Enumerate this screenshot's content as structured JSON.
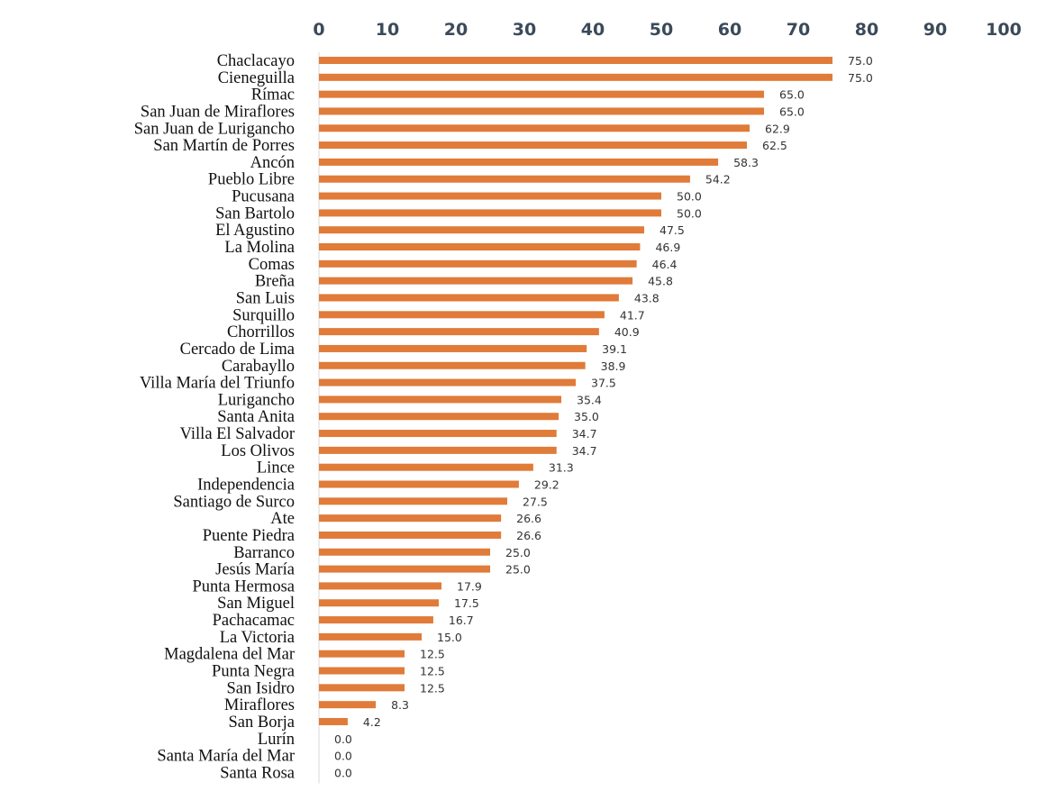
{
  "chart_data": {
    "type": "bar",
    "orientation": "horizontal",
    "title": "",
    "xlabel": "",
    "ylabel": "",
    "xlim": [
      0,
      100
    ],
    "ticks": [
      "0",
      "10",
      "20",
      "30",
      "40",
      "50",
      "60",
      "70",
      "80",
      "90",
      "100"
    ],
    "grid": false,
    "axis_position": "top",
    "bar_color": "#e07b39",
    "categories": [
      "Chaclacayo",
      "Cieneguilla",
      "Rímac",
      "San Juan de Miraflores",
      "San Juan de Lurigancho",
      "San Martín de Porres",
      "Ancón",
      "Pueblo Libre",
      "Pucusana",
      "San Bartolo",
      "El Agustino",
      "La Molina",
      "Comas",
      "Breña",
      "San Luis",
      "Surquillo",
      "Chorrillos",
      "Cercado de Lima",
      "Carabayllo",
      "Villa María del Triunfo",
      "Lurigancho",
      "Santa Anita",
      "Villa El Salvador",
      "Los Olivos",
      "Lince",
      "Independencia",
      "Santiago de Surco",
      "Ate",
      "Puente Piedra",
      "Barranco",
      "Jesús María",
      "Punta Hermosa",
      "San Miguel",
      "Pachacamac",
      "La Victoria",
      "Magdalena del Mar",
      "Punta Negra",
      "San Isidro",
      "Miraflores",
      "San Borja",
      "Lurín",
      "Santa María del Mar",
      "Santa Rosa"
    ],
    "values": [
      75.0,
      75.0,
      65.0,
      65.0,
      62.9,
      62.5,
      58.3,
      54.2,
      50.0,
      50.0,
      47.5,
      46.9,
      46.4,
      45.8,
      43.8,
      41.7,
      40.9,
      39.1,
      38.9,
      37.5,
      35.4,
      35.0,
      34.7,
      34.7,
      31.3,
      29.2,
      27.5,
      26.6,
      26.6,
      25.0,
      25.0,
      17.9,
      17.5,
      16.7,
      15.0,
      12.5,
      12.5,
      12.5,
      8.3,
      4.2,
      0.0,
      0.0,
      0.0
    ],
    "value_labels": [
      "75.0",
      "75.0",
      "65.0",
      "65.0",
      "62.9",
      "62.5",
      "58.3",
      "54.2",
      "50.0",
      "50.0",
      "47.5",
      "46.9",
      "46.4",
      "45.8",
      "43.8",
      "41.7",
      "40.9",
      "39.1",
      "38.9",
      "37.5",
      "35.4",
      "35.0",
      "34.7",
      "34.7",
      "31.3",
      "29.2",
      "27.5",
      "26.6",
      "26.6",
      "25.0",
      "25.0",
      "17.9",
      "17.5",
      "16.7",
      "15.0",
      "12.5",
      "12.5",
      "12.5",
      "8.3",
      "4.2",
      "0.0",
      "0.0",
      "0.0"
    ]
  }
}
